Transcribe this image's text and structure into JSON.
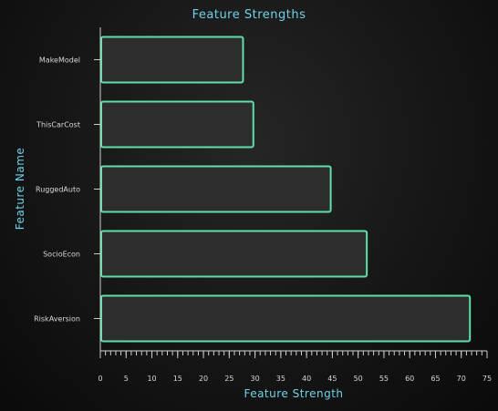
{
  "chart_data": {
    "type": "bar",
    "orientation": "horizontal",
    "title": "Feature Strengths",
    "xlabel": "Feature Strength",
    "ylabel": "Feature Name",
    "categories": [
      "MakeModel",
      "ThisCarCost",
      "RuggedAuto",
      "SocioEcon",
      "RiskAversion"
    ],
    "values": [
      27.5,
      29.5,
      44.5,
      51.5,
      71.5
    ],
    "xlim": [
      0,
      75
    ],
    "xticks": [
      0,
      5,
      10,
      15,
      20,
      25,
      30,
      35,
      40,
      45,
      50,
      55,
      60,
      65,
      70,
      75
    ],
    "grid": false,
    "legend": "none"
  },
  "colors": {
    "bar_fill": "#2d2d2d",
    "bar_stroke": "#5fe0a8",
    "title": "#6fd3e8",
    "text": "#d8d8d8",
    "background": "#161616"
  }
}
